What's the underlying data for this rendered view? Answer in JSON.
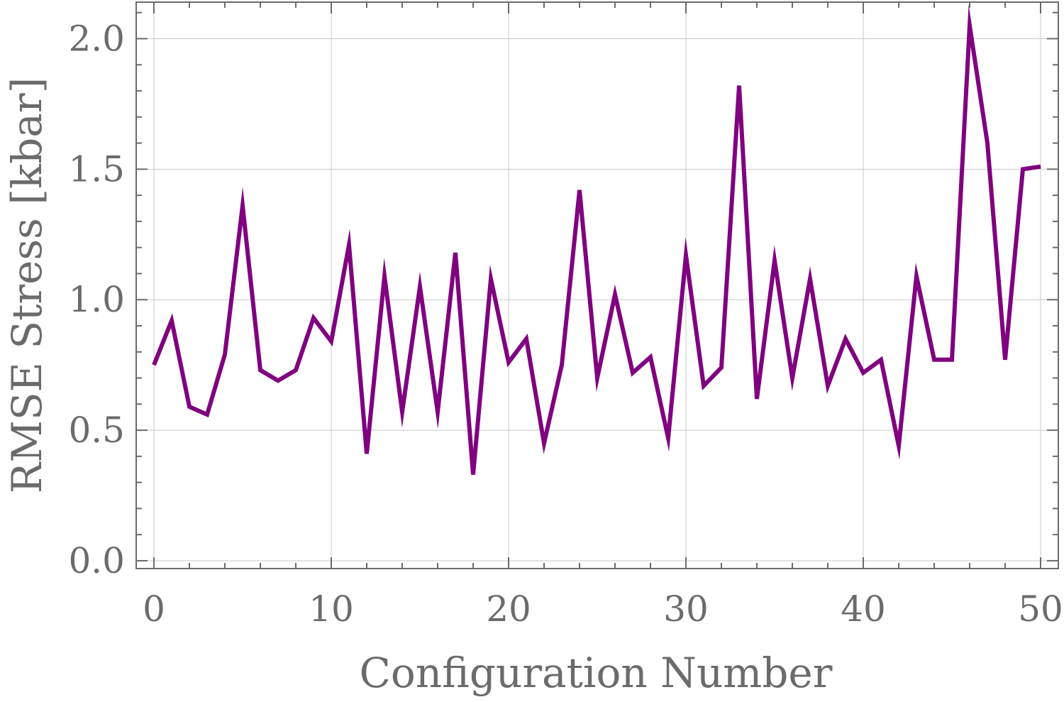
{
  "chart_data": {
    "type": "line",
    "title": "",
    "xlabel": "Configuration Number",
    "ylabel": "RMSE Stress [kbar]",
    "xlim": [
      -1,
      51
    ],
    "ylim": [
      -0.03,
      2.14
    ],
    "xticks": [
      0,
      10,
      20,
      30,
      40,
      50
    ],
    "xtick_labels": [
      "0",
      "10",
      "20",
      "30",
      "40",
      "50"
    ],
    "yticks": [
      0.0,
      0.5,
      1.0,
      1.5,
      2.0
    ],
    "ytick_labels": [
      "0.0",
      "0.5",
      "1.0",
      "1.5",
      "2.0"
    ],
    "x_minor_step": 2,
    "y_minor_step": 0.1,
    "grid": true,
    "colors": {
      "line": "#800080",
      "axis": "#6b6b6b",
      "grid": "#c8c8c8"
    },
    "series": [
      {
        "name": "RMSE Stress",
        "x": [
          0,
          1,
          2,
          3,
          4,
          5,
          6,
          7,
          8,
          9,
          10,
          11,
          12,
          13,
          14,
          15,
          16,
          17,
          18,
          19,
          20,
          21,
          22,
          23,
          24,
          25,
          26,
          27,
          28,
          29,
          30,
          31,
          32,
          33,
          34,
          35,
          36,
          37,
          38,
          39,
          40,
          41,
          42,
          43,
          44,
          45,
          46,
          47,
          48,
          49,
          50
        ],
        "values": [
          0.75,
          0.92,
          0.59,
          0.56,
          0.79,
          1.36,
          0.73,
          0.69,
          0.73,
          0.93,
          0.84,
          1.21,
          0.41,
          1.09,
          0.57,
          1.05,
          0.57,
          1.18,
          0.33,
          1.08,
          0.76,
          0.85,
          0.45,
          0.75,
          1.42,
          0.7,
          1.02,
          0.72,
          0.78,
          0.47,
          1.17,
          0.67,
          0.74,
          1.82,
          0.62,
          1.15,
          0.7,
          1.08,
          0.67,
          0.85,
          0.72,
          0.77,
          0.44,
          1.09,
          0.77,
          0.77,
          2.05,
          1.6,
          0.77,
          1.5,
          1.51
        ]
      }
    ]
  }
}
